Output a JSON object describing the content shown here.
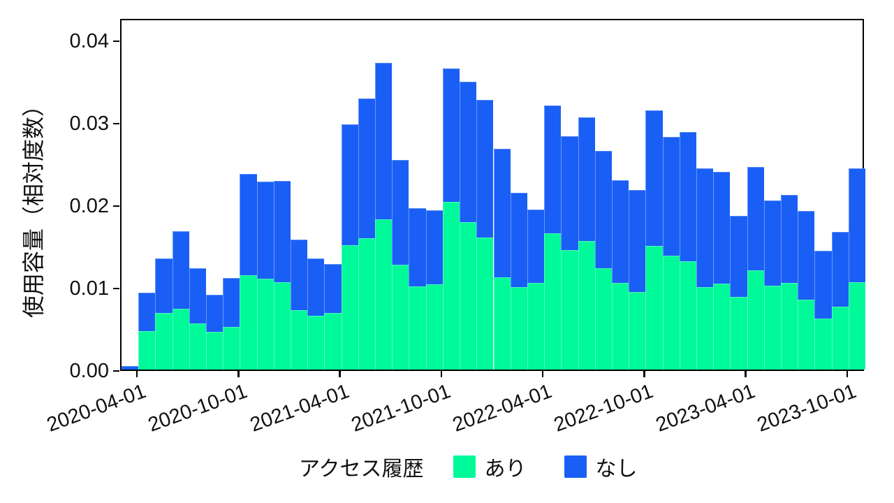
{
  "chart_data": {
    "type": "bar",
    "stacked": true,
    "title": "",
    "xlabel": "",
    "ylabel": "使用容量（相対度数）",
    "ylim": [
      0,
      0.0427
    ],
    "grid": false,
    "legend_position": "bottom",
    "legend_title": "アクセス履歴",
    "yticks": [
      {
        "value": 0.0,
        "label": "0.00"
      },
      {
        "value": 0.01,
        "label": "0.01"
      },
      {
        "value": 0.02,
        "label": "0.02"
      },
      {
        "value": 0.03,
        "label": "0.03"
      },
      {
        "value": 0.04,
        "label": "0.04"
      }
    ],
    "xticks": [
      {
        "index": 1,
        "label": "2020-04-01"
      },
      {
        "index": 7,
        "label": "2020-10-01"
      },
      {
        "index": 13,
        "label": "2021-04-01"
      },
      {
        "index": 19,
        "label": "2021-10-01"
      },
      {
        "index": 25,
        "label": "2022-04-01"
      },
      {
        "index": 31,
        "label": "2022-10-01"
      },
      {
        "index": 37,
        "label": "2023-04-01"
      },
      {
        "index": 43,
        "label": "2023-10-01"
      }
    ],
    "categories": [
      "2020-03",
      "2020-04",
      "2020-05",
      "2020-06",
      "2020-07",
      "2020-08",
      "2020-09",
      "2020-10",
      "2020-11",
      "2020-12",
      "2021-01",
      "2021-02",
      "2021-03",
      "2021-04",
      "2021-05",
      "2021-06",
      "2021-07",
      "2021-08",
      "2021-09",
      "2021-10",
      "2021-11",
      "2021-12",
      "2022-01",
      "2022-02",
      "2022-03",
      "2022-04",
      "2022-05",
      "2022-06",
      "2022-07",
      "2022-08",
      "2022-09",
      "2022-10",
      "2022-11",
      "2022-12",
      "2023-01",
      "2023-02",
      "2023-03",
      "2023-04",
      "2023-05",
      "2023-06",
      "2023-07",
      "2023-08",
      "2023-09",
      "2023-10"
    ],
    "series": [
      {
        "name": "あり",
        "color": "#00FA9A",
        "values": [
          0.0,
          0.0047,
          0.0069,
          0.0074,
          0.0056,
          0.0046,
          0.0052,
          0.0114,
          0.011,
          0.0106,
          0.0072,
          0.0065,
          0.0069,
          0.0151,
          0.0159,
          0.0182,
          0.0127,
          0.0101,
          0.0103,
          0.0203,
          0.0179,
          0.016,
          0.0112,
          0.01,
          0.0105,
          0.0165,
          0.0145,
          0.0156,
          0.0123,
          0.0105,
          0.0094,
          0.015,
          0.0138,
          0.0131,
          0.01,
          0.0104,
          0.0088,
          0.012,
          0.0102,
          0.0105,
          0.0085,
          0.0062,
          0.0076,
          0.0106
        ]
      },
      {
        "name": "なし",
        "color": "#1A5FF5",
        "values": [
          0.0004,
          0.0046,
          0.0066,
          0.0094,
          0.0067,
          0.0045,
          0.0059,
          0.0123,
          0.0118,
          0.0123,
          0.0086,
          0.007,
          0.0059,
          0.0146,
          0.017,
          0.019,
          0.0127,
          0.0095,
          0.009,
          0.0162,
          0.017,
          0.0167,
          0.0156,
          0.0114,
          0.0089,
          0.0155,
          0.0138,
          0.015,
          0.0142,
          0.0125,
          0.0124,
          0.0164,
          0.0144,
          0.0157,
          0.0144,
          0.0136,
          0.0098,
          0.0126,
          0.0103,
          0.0107,
          0.0107,
          0.0082,
          0.0091,
          0.0138
        ]
      }
    ]
  }
}
